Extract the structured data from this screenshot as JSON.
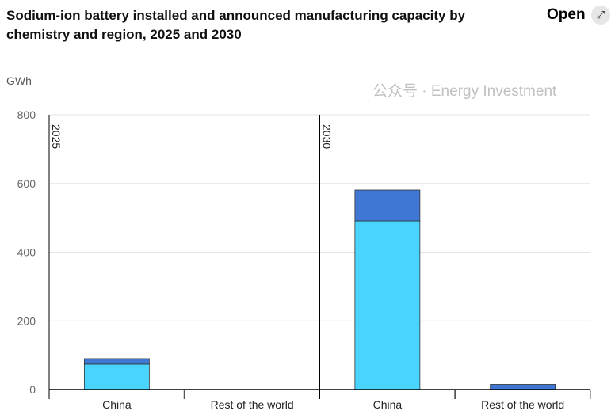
{
  "title": "Sodium-ion battery installed and announced manufacturing capacity by chemistry and region, 2025 and 2030",
  "open_label": "Open",
  "open_icon": "expand-icon",
  "watermark": "公众号 · Energy Investment",
  "chart_data": {
    "type": "bar",
    "stacked": true,
    "title": "Sodium-ion battery installed and announced manufacturing capacity by chemistry and region, 2025 and 2030",
    "ylabel": "GWh",
    "ylim": [
      0,
      800
    ],
    "yticks": [
      0,
      200,
      400,
      600,
      800
    ],
    "grid": true,
    "panels": [
      {
        "label": "2025",
        "categories": [
          "China",
          "Rest of the world"
        ],
        "series": [
          {
            "color": "#48d4ff",
            "values": [
              74,
              0
            ]
          },
          {
            "color": "#3f78d4",
            "values": [
              16,
              0
            ]
          }
        ]
      },
      {
        "label": "2030",
        "categories": [
          "China",
          "Rest of the world"
        ],
        "series": [
          {
            "color": "#48d4ff",
            "values": [
              491,
              0
            ]
          },
          {
            "color": "#3f78d4",
            "values": [
              90,
              15
            ]
          }
        ]
      }
    ]
  }
}
